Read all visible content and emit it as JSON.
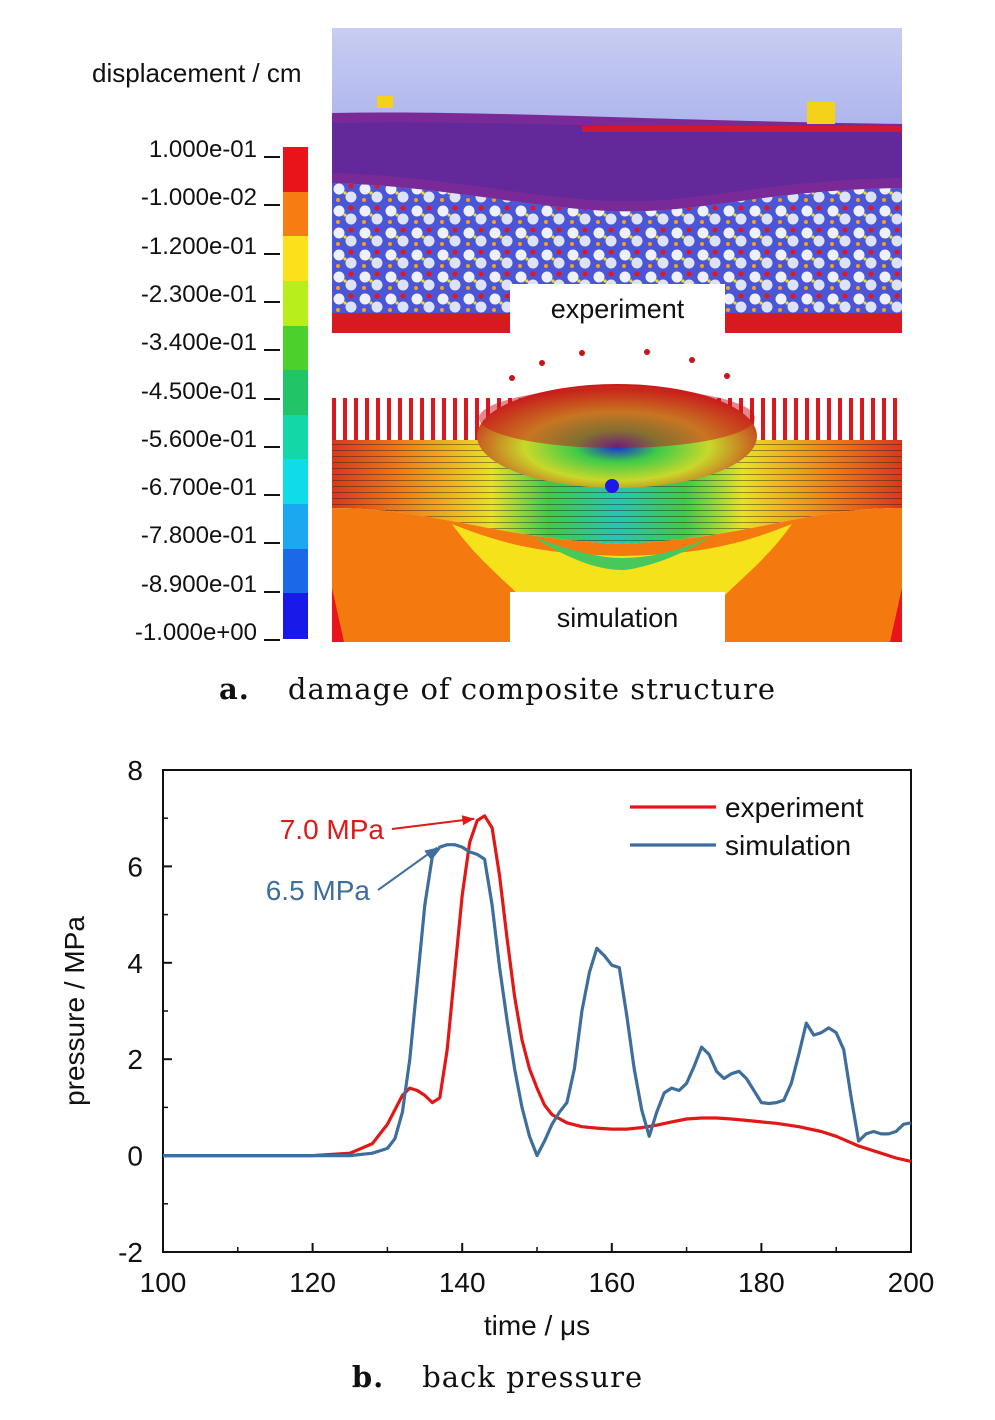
{
  "panel_a": {
    "colorbar": {
      "title": "displacement / cm",
      "labels": [
        "1.000e-01",
        "-1.000e-02",
        "-1.200e-01",
        "-2.300e-01",
        "-3.400e-01",
        "-4.500e-01",
        "-5.600e-01",
        "-6.700e-01",
        "-7.800e-01",
        "-8.900e-01",
        "-1.000e+00"
      ],
      "colors": [
        "#e8141a",
        "#f77d12",
        "#fbe01a",
        "#b8ee1c",
        "#4cd02c",
        "#22c468",
        "#12d8a8",
        "#10dce8",
        "#1aa8f0",
        "#1a6ae8",
        "#1a1ae8"
      ]
    },
    "experiment_label": "experiment",
    "simulation_label": "simulation",
    "caption_letter": "a.",
    "caption_text": "damage of composite structure"
  },
  "panel_b": {
    "caption_letter": "b.",
    "caption_text": "back pressure"
  },
  "chart_data": {
    "type": "line",
    "xlabel": "time / μs",
    "ylabel": "pressure / MPa",
    "xlim": [
      100,
      200
    ],
    "ylim": [
      -2,
      8
    ],
    "xticks": [
      100,
      120,
      140,
      160,
      180,
      200
    ],
    "yticks": [
      -2,
      0,
      2,
      4,
      6,
      8
    ],
    "legend_position": "top-right",
    "grid": false,
    "series": [
      {
        "name": "experiment",
        "color": "#e01818",
        "x": [
          100,
          120,
          125,
          128,
          130,
          132,
          133,
          134,
          135,
          136,
          137,
          138,
          139,
          140,
          141,
          142,
          143,
          144,
          145,
          146,
          147,
          148,
          149,
          150,
          151,
          152,
          154,
          156,
          158,
          160,
          162,
          164,
          166,
          168,
          170,
          172,
          174,
          176,
          178,
          180,
          182,
          185,
          188,
          190,
          193,
          196,
          198,
          200
        ],
        "y": [
          0,
          0,
          0.05,
          0.25,
          0.65,
          1.25,
          1.4,
          1.35,
          1.25,
          1.1,
          1.2,
          2.2,
          3.8,
          5.4,
          6.5,
          6.95,
          7.05,
          6.8,
          5.8,
          4.5,
          3.3,
          2.4,
          1.8,
          1.4,
          1.05,
          0.85,
          0.68,
          0.6,
          0.57,
          0.55,
          0.55,
          0.58,
          0.63,
          0.7,
          0.76,
          0.78,
          0.78,
          0.76,
          0.73,
          0.7,
          0.67,
          0.6,
          0.5,
          0.4,
          0.2,
          0.05,
          -0.05,
          -0.12
        ]
      },
      {
        "name": "simulation",
        "color": "#3e6e9c",
        "x": [
          100,
          120,
          125,
          128,
          130,
          131,
          132,
          133,
          134,
          135,
          136,
          137,
          138,
          139,
          140,
          141,
          142,
          143,
          144,
          145,
          146,
          147,
          148,
          149,
          150,
          151,
          152,
          153,
          154,
          155,
          156,
          157,
          158,
          159,
          160,
          161,
          162,
          163,
          164,
          165,
          166,
          167,
          168,
          169,
          170,
          171,
          172,
          173,
          174,
          175,
          176,
          177,
          178,
          179,
          180,
          181,
          182,
          183,
          184,
          185,
          186,
          187,
          188,
          189,
          190,
          191,
          192,
          193,
          194,
          195,
          196,
          197,
          198,
          199,
          200
        ],
        "y": [
          0,
          0,
          0,
          0.05,
          0.15,
          0.35,
          0.9,
          2.0,
          3.6,
          5.2,
          6.2,
          6.4,
          6.45,
          6.45,
          6.4,
          6.3,
          6.25,
          6.15,
          5.2,
          3.9,
          2.8,
          1.8,
          1.0,
          0.4,
          0.0,
          0.3,
          0.65,
          0.9,
          1.1,
          1.8,
          3.0,
          3.8,
          4.3,
          4.15,
          3.95,
          3.9,
          2.9,
          1.8,
          0.95,
          0.4,
          0.9,
          1.3,
          1.4,
          1.35,
          1.5,
          1.85,
          2.25,
          2.1,
          1.75,
          1.6,
          1.7,
          1.75,
          1.6,
          1.35,
          1.1,
          1.08,
          1.1,
          1.15,
          1.5,
          2.1,
          2.75,
          2.5,
          2.55,
          2.65,
          2.55,
          2.2,
          1.2,
          0.3,
          0.45,
          0.5,
          0.45,
          0.45,
          0.5,
          0.65,
          0.68
        ]
      }
    ],
    "annotations": [
      {
        "text": "7.0 MPa",
        "color": "#e01818",
        "x": 143.5,
        "y": 7.05
      },
      {
        "text": "6.5 MPa",
        "color": "#3e6e9c",
        "x": 138.5,
        "y": 6.45
      }
    ]
  }
}
